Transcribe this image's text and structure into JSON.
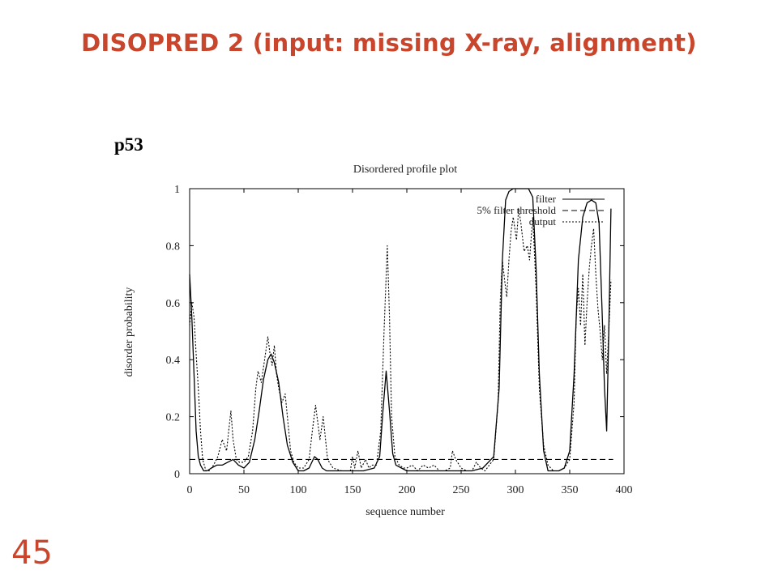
{
  "slide": {
    "title": "DISOPRED 2 (input: missing X-ray, alignment)",
    "protein_label": "p53",
    "page_number": "45",
    "accent_color": "#c9462c"
  },
  "chart_data": {
    "type": "line",
    "title": "Disordered profile plot",
    "xlabel": "sequence number",
    "ylabel": "disorder probability",
    "xlim": [
      0,
      400
    ],
    "ylim": [
      0,
      1
    ],
    "xticks": [
      0,
      50,
      100,
      150,
      200,
      250,
      300,
      350,
      400
    ],
    "yticks": [
      0,
      0.2,
      0.4,
      0.6,
      0.8,
      1
    ],
    "ytick_labels": [
      "0",
      "0.2",
      "0.4",
      "0.6",
      "0.8",
      "1"
    ],
    "legend_position": "top-right",
    "grid": false,
    "series": [
      {
        "name": "filter",
        "style": "solid",
        "x": [
          0,
          2,
          4,
          6,
          8,
          10,
          13,
          16,
          20,
          25,
          30,
          35,
          40,
          45,
          50,
          55,
          60,
          64,
          68,
          72,
          75,
          78,
          82,
          86,
          90,
          95,
          100,
          105,
          110,
          115,
          118,
          122,
          126,
          130,
          140,
          150,
          160,
          170,
          175,
          178,
          181,
          184,
          187,
          190,
          195,
          200,
          210,
          220,
          230,
          240,
          250,
          260,
          270,
          280,
          285,
          288,
          291,
          294,
          298,
          305,
          312,
          316,
          319,
          322,
          326,
          330,
          340,
          345,
          350,
          354,
          358,
          362,
          366,
          370,
          374,
          377,
          380,
          382,
          384,
          386,
          388
        ],
        "y": [
          0.7,
          0.55,
          0.35,
          0.15,
          0.06,
          0.03,
          0.01,
          0.01,
          0.02,
          0.03,
          0.03,
          0.04,
          0.05,
          0.03,
          0.02,
          0.04,
          0.12,
          0.22,
          0.33,
          0.4,
          0.42,
          0.39,
          0.32,
          0.2,
          0.1,
          0.04,
          0.01,
          0.01,
          0.02,
          0.06,
          0.05,
          0.02,
          0.01,
          0.01,
          0.01,
          0.01,
          0.01,
          0.02,
          0.06,
          0.22,
          0.36,
          0.22,
          0.07,
          0.03,
          0.02,
          0.01,
          0.01,
          0.01,
          0.01,
          0.01,
          0.01,
          0.01,
          0.02,
          0.06,
          0.3,
          0.75,
          0.96,
          0.99,
          1.0,
          1.0,
          1.0,
          0.97,
          0.72,
          0.35,
          0.08,
          0.01,
          0.01,
          0.02,
          0.08,
          0.35,
          0.75,
          0.9,
          0.95,
          0.96,
          0.95,
          0.88,
          0.55,
          0.3,
          0.15,
          0.5,
          0.93
        ]
      },
      {
        "name": "5% filter threshold",
        "style": "dashed",
        "x": [
          0,
          390
        ],
        "y": [
          0.05,
          0.05
        ]
      },
      {
        "name": "output",
        "style": "dotted",
        "x": [
          0,
          2,
          4,
          6,
          8,
          10,
          12,
          15,
          18,
          22,
          26,
          30,
          32,
          34,
          36,
          38,
          40,
          43,
          46,
          50,
          54,
          58,
          61,
          63,
          66,
          69,
          72,
          74,
          76,
          78,
          80,
          82,
          85,
          88,
          90,
          93,
          96,
          100,
          105,
          110,
          113,
          116,
          118,
          120,
          123,
          127,
          132,
          140,
          148,
          150,
          152,
          155,
          158,
          162,
          165,
          168,
          172,
          176,
          179,
          182,
          184,
          186,
          189,
          193,
          197,
          200,
          205,
          210,
          215,
          220,
          225,
          230,
          235,
          240,
          242,
          245,
          250,
          255,
          260,
          264,
          268,
          272,
          276,
          280,
          284,
          286,
          288,
          290,
          292,
          294,
          296,
          298,
          301,
          303,
          305,
          308,
          311,
          313,
          316,
          319,
          322,
          326,
          330,
          335,
          340,
          345,
          350,
          354,
          356,
          358,
          360,
          362,
          364,
          366,
          368,
          370,
          372,
          374,
          376,
          378,
          380,
          382,
          384,
          386,
          388
        ],
        "y": [
          0.52,
          0.6,
          0.55,
          0.42,
          0.3,
          0.15,
          0.05,
          0.01,
          0.01,
          0.03,
          0.06,
          0.12,
          0.1,
          0.08,
          0.15,
          0.22,
          0.12,
          0.05,
          0.04,
          0.04,
          0.06,
          0.15,
          0.3,
          0.36,
          0.32,
          0.4,
          0.48,
          0.42,
          0.38,
          0.45,
          0.35,
          0.3,
          0.25,
          0.28,
          0.2,
          0.08,
          0.04,
          0.02,
          0.02,
          0.05,
          0.15,
          0.24,
          0.18,
          0.12,
          0.2,
          0.05,
          0.02,
          0.01,
          0.01,
          0.06,
          0.02,
          0.08,
          0.02,
          0.05,
          0.02,
          0.03,
          0.03,
          0.15,
          0.5,
          0.8,
          0.55,
          0.2,
          0.06,
          0.03,
          0.02,
          0.02,
          0.03,
          0.01,
          0.03,
          0.02,
          0.03,
          0.01,
          0.01,
          0.02,
          0.08,
          0.05,
          0.02,
          0.01,
          0.01,
          0.04,
          0.02,
          0.01,
          0.03,
          0.05,
          0.25,
          0.6,
          0.75,
          0.68,
          0.62,
          0.75,
          0.85,
          0.9,
          0.82,
          0.93,
          0.88,
          0.78,
          0.8,
          0.75,
          0.9,
          0.65,
          0.3,
          0.1,
          0.03,
          0.01,
          0.01,
          0.02,
          0.05,
          0.25,
          0.55,
          0.65,
          0.52,
          0.7,
          0.45,
          0.6,
          0.72,
          0.8,
          0.86,
          0.7,
          0.58,
          0.5,
          0.4,
          0.52,
          0.35,
          0.5,
          0.68
        ]
      }
    ]
  }
}
